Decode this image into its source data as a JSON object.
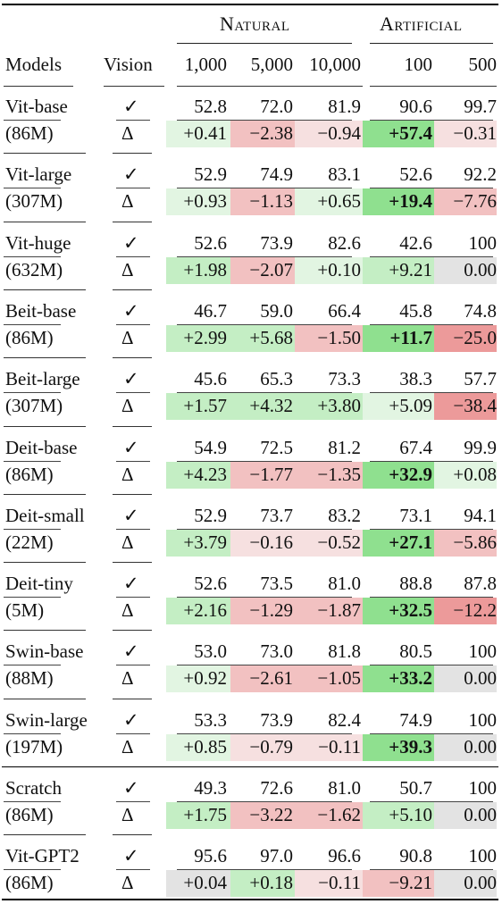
{
  "header": {
    "group_natural": "Natural",
    "group_artificial": "Artificial",
    "col_models": "Models",
    "col_vision": "Vision",
    "cols": [
      "1,000",
      "5,000",
      "10,000",
      "100",
      "500"
    ]
  },
  "symbols": {
    "check": "✓",
    "delta": "Δ"
  },
  "colors": {
    "green_strong": "#8fe08f",
    "green_medium": "#c4eec4",
    "green_light": "#e2f5e2",
    "red_strong": "#ec9a9a",
    "red_medium": "#f2c1c1",
    "red_light": "#f6e0e0",
    "gray": "#e3e3e3"
  },
  "rows": [
    {
      "name": "Vit-base",
      "params": "(86M)",
      "vision": [
        "52.8",
        "72.0",
        "81.9",
        "90.6",
        "99.7"
      ],
      "delta": [
        "+0.41",
        "−2.38",
        "−0.94",
        "+57.4",
        "−0.31"
      ],
      "bold": [
        false,
        false,
        false,
        true,
        false
      ],
      "tone": [
        "gl",
        "rm",
        "rl",
        "gs",
        "rl"
      ]
    },
    {
      "name": "Vit-large",
      "params": "(307M)",
      "vision": [
        "52.9",
        "74.9",
        "83.1",
        "52.6",
        "92.2"
      ],
      "delta": [
        "+0.93",
        "−1.13",
        "+0.65",
        "+19.4",
        "−7.76"
      ],
      "bold": [
        false,
        false,
        false,
        true,
        false
      ],
      "tone": [
        "gl",
        "rm",
        "gl",
        "gs",
        "rm"
      ]
    },
    {
      "name": "Vit-huge",
      "params": "(632M)",
      "vision": [
        "52.6",
        "73.9",
        "82.6",
        "42.6",
        "100"
      ],
      "delta": [
        "+1.98",
        "−2.07",
        "+0.10",
        "+9.21",
        "0.00"
      ],
      "bold": [
        false,
        false,
        false,
        false,
        false
      ],
      "tone": [
        "gm",
        "rm",
        "gl",
        "gm",
        "gy"
      ]
    },
    {
      "name": "Beit-base",
      "params": "(86M)",
      "vision": [
        "46.7",
        "59.0",
        "66.4",
        "45.8",
        "74.8"
      ],
      "delta": [
        "+2.99",
        "+5.68",
        "−1.50",
        "+11.7",
        "−25.0"
      ],
      "bold": [
        false,
        false,
        false,
        true,
        false
      ],
      "tone": [
        "gm",
        "gm",
        "rm",
        "gs",
        "rs"
      ]
    },
    {
      "name": "Beit-large",
      "params": "(307M)",
      "vision": [
        "45.6",
        "65.3",
        "73.3",
        "38.3",
        "57.7"
      ],
      "delta": [
        "+1.57",
        "+4.32",
        "+3.80",
        "+5.09",
        "−38.4"
      ],
      "bold": [
        false,
        false,
        false,
        false,
        false
      ],
      "tone": [
        "gm",
        "gm",
        "gm",
        "gl",
        "rs"
      ]
    },
    {
      "name": "Deit-base",
      "params": "(86M)",
      "vision": [
        "54.9",
        "72.5",
        "81.2",
        "67.4",
        "99.9"
      ],
      "delta": [
        "+4.23",
        "−1.77",
        "−1.35",
        "+32.9",
        "+0.08"
      ],
      "bold": [
        false,
        false,
        false,
        true,
        false
      ],
      "tone": [
        "gm",
        "rm",
        "rm",
        "gs",
        "gl"
      ]
    },
    {
      "name": "Deit-small",
      "params": "(22M)",
      "vision": [
        "52.9",
        "73.7",
        "83.2",
        "73.1",
        "94.1"
      ],
      "delta": [
        "+3.79",
        "−0.16",
        "−0.52",
        "+27.1",
        "−5.86"
      ],
      "bold": [
        false,
        false,
        false,
        true,
        false
      ],
      "tone": [
        "gm",
        "rl",
        "rl",
        "gs",
        "rm"
      ]
    },
    {
      "name": "Deit-tiny",
      "params": "(5M)",
      "vision": [
        "52.6",
        "73.5",
        "81.0",
        "88.8",
        "87.8"
      ],
      "delta": [
        "+2.16",
        "−1.29",
        "−1.87",
        "+32.5",
        "−12.2"
      ],
      "bold": [
        false,
        false,
        false,
        true,
        false
      ],
      "tone": [
        "gm",
        "rm",
        "rm",
        "gs",
        "rs"
      ]
    },
    {
      "name": "Swin-base",
      "params": "(88M)",
      "vision": [
        "53.0",
        "73.0",
        "81.8",
        "80.5",
        "100"
      ],
      "delta": [
        "+0.92",
        "−2.61",
        "−1.05",
        "+33.2",
        "0.00"
      ],
      "bold": [
        false,
        false,
        false,
        true,
        false
      ],
      "tone": [
        "gl",
        "rm",
        "rm",
        "gs",
        "gy"
      ]
    },
    {
      "name": "Swin-large",
      "params": "(197M)",
      "vision": [
        "53.3",
        "73.9",
        "82.4",
        "74.9",
        "100"
      ],
      "delta": [
        "+0.85",
        "−0.79",
        "−0.11",
        "+39.3",
        "0.00"
      ],
      "bold": [
        false,
        false,
        false,
        true,
        false
      ],
      "tone": [
        "gl",
        "rl",
        "rl",
        "gs",
        "gy"
      ]
    },
    {
      "name": "Scratch",
      "params": "(86M)",
      "vision": [
        "49.3",
        "72.6",
        "81.0",
        "50.7",
        "100"
      ],
      "delta": [
        "+1.75",
        "−3.22",
        "−1.62",
        "+5.10",
        "0.00"
      ],
      "bold": [
        false,
        false,
        false,
        false,
        false
      ],
      "tone": [
        "gm",
        "rm",
        "rm",
        "gm",
        "gy"
      ]
    },
    {
      "name": "Vit-GPT2",
      "params": "(86M)",
      "vision": [
        "95.6",
        "97.0",
        "96.6",
        "90.8",
        "100"
      ],
      "delta": [
        "+0.04",
        "+0.18",
        "−0.11",
        "−9.21",
        "0.00"
      ],
      "bold": [
        false,
        false,
        false,
        false,
        false
      ],
      "tone": [
        "gy",
        "gm",
        "rl",
        "rm",
        "gy"
      ]
    }
  ]
}
